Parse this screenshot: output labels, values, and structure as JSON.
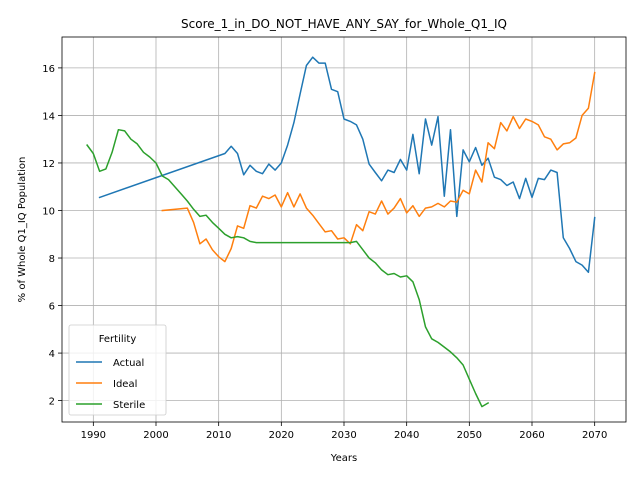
{
  "chart_data": {
    "type": "line",
    "title": "Score_1_in_DO_NOT_HAVE_ANY_SAY_for_Whole_Q1_IQ",
    "xlabel": "Years",
    "ylabel": "% of Whole Q1_IQ Population",
    "xlim": [
      1985,
      2075
    ],
    "ylim": [
      1.1,
      17.3
    ],
    "xticks": [
      1990,
      2000,
      2010,
      2020,
      2030,
      2040,
      2050,
      2060,
      2070
    ],
    "yticks": [
      2,
      4,
      6,
      8,
      10,
      12,
      14,
      16
    ],
    "grid": true,
    "legend": {
      "title": "Fertility",
      "placement": "lower-left"
    },
    "series": [
      {
        "name": "Actual",
        "color": "#1f77b4",
        "x": [
          1991,
          2011,
          2012,
          2013,
          2014,
          2015,
          2016,
          2017,
          2018,
          2019,
          2020,
          2021,
          2022,
          2023,
          2024,
          2025,
          2026,
          2027,
          2028,
          2029,
          2030,
          2031,
          2032,
          2033,
          2034,
          2035,
          2036,
          2037,
          2038,
          2039,
          2040,
          2041,
          2042,
          2043,
          2044,
          2045,
          2046,
          2047,
          2048,
          2049,
          2050,
          2051,
          2052,
          2053,
          2054,
          2055,
          2056,
          2057,
          2058,
          2059,
          2060,
          2061,
          2062,
          2063,
          2064,
          2065,
          2066,
          2067,
          2068,
          2069,
          2070
        ],
        "y": [
          10.55,
          12.4,
          12.7,
          12.4,
          11.5,
          11.9,
          11.65,
          11.55,
          11.95,
          11.7,
          12.0,
          12.75,
          13.7,
          14.9,
          16.1,
          16.45,
          16.2,
          16.2,
          15.1,
          15.0,
          13.85,
          13.75,
          13.6,
          13.0,
          11.95,
          11.6,
          11.25,
          11.7,
          11.6,
          12.15,
          11.7,
          13.2,
          11.55,
          13.85,
          12.75,
          13.95,
          10.6,
          13.4,
          9.75,
          12.55,
          12.05,
          12.65,
          11.9,
          12.2,
          11.4,
          11.3,
          11.05,
          11.2,
          10.5,
          11.35,
          10.55,
          11.35,
          11.3,
          11.7,
          11.6,
          8.85,
          8.4,
          7.85,
          7.7,
          7.4,
          9.7
        ]
      },
      {
        "name": "Ideal",
        "color": "#ff7f0e",
        "x": [
          2001,
          2005,
          2006,
          2007,
          2008,
          2009,
          2010,
          2011,
          2012,
          2013,
          2014,
          2015,
          2016,
          2017,
          2018,
          2019,
          2020,
          2021,
          2022,
          2023,
          2024,
          2025,
          2026,
          2027,
          2028,
          2029,
          2030,
          2031,
          2032,
          2033,
          2034,
          2035,
          2036,
          2037,
          2038,
          2039,
          2040,
          2041,
          2042,
          2043,
          2044,
          2045,
          2046,
          2047,
          2048,
          2049,
          2050,
          2051,
          2052,
          2053,
          2054,
          2055,
          2056,
          2057,
          2058,
          2059,
          2060,
          2061,
          2062,
          2063,
          2064,
          2065,
          2066,
          2067,
          2068,
          2069,
          2070
        ],
        "y": [
          10.0,
          10.1,
          9.5,
          8.6,
          8.8,
          8.35,
          8.05,
          7.85,
          8.4,
          9.35,
          9.25,
          10.2,
          10.1,
          10.6,
          10.5,
          10.65,
          10.15,
          10.75,
          10.15,
          10.7,
          10.1,
          9.8,
          9.45,
          9.1,
          9.15,
          8.8,
          8.85,
          8.6,
          9.4,
          9.15,
          9.95,
          9.85,
          10.4,
          9.85,
          10.1,
          10.5,
          9.9,
          10.2,
          9.75,
          10.1,
          10.15,
          10.3,
          10.15,
          10.4,
          10.35,
          10.85,
          10.7,
          11.7,
          11.2,
          12.85,
          12.6,
          13.7,
          13.35,
          13.95,
          13.45,
          13.85,
          13.75,
          13.6,
          13.1,
          13.0,
          12.55,
          12.8,
          12.85,
          13.05,
          14.0,
          14.3,
          15.8
        ]
      },
      {
        "name": "Sterile",
        "color": "#2ca02c",
        "x": [
          1989,
          1990,
          1991,
          1992,
          1993,
          1994,
          1995,
          1996,
          1997,
          1998,
          1999,
          2000,
          2001,
          2002,
          2003,
          2004,
          2005,
          2006,
          2007,
          2008,
          2009,
          2010,
          2011,
          2012,
          2013,
          2014,
          2015,
          2016,
          2017,
          2018,
          2019,
          2020,
          2021,
          2022,
          2023,
          2024,
          2025,
          2026,
          2027,
          2028,
          2029,
          2030,
          2031,
          2032,
          2033,
          2034,
          2035,
          2036,
          2037,
          2038,
          2039,
          2040,
          2041,
          2042,
          2043,
          2044,
          2045,
          2046,
          2047,
          2048,
          2049,
          2050,
          2051,
          2052,
          2053
        ],
        "y": [
          12.75,
          12.4,
          11.65,
          11.75,
          12.45,
          13.4,
          13.35,
          13.0,
          12.8,
          12.45,
          12.25,
          12.0,
          11.45,
          11.3,
          11.0,
          10.7,
          10.4,
          10.05,
          9.75,
          9.8,
          9.5,
          9.25,
          9.0,
          8.85,
          8.9,
          8.85,
          8.7,
          8.65,
          8.65,
          8.65,
          8.65,
          8.65,
          8.65,
          8.65,
          8.65,
          8.65,
          8.65,
          8.65,
          8.65,
          8.65,
          8.65,
          8.65,
          8.65,
          8.7,
          8.35,
          8.0,
          7.8,
          7.5,
          7.3,
          7.35,
          7.2,
          7.25,
          7.0,
          6.25,
          5.1,
          4.6,
          4.45,
          4.25,
          4.05,
          3.8,
          3.5,
          2.9,
          2.3,
          1.75,
          1.9
        ]
      }
    ]
  }
}
